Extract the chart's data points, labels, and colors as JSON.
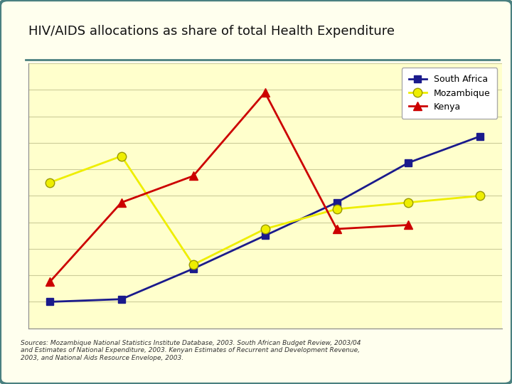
{
  "title": "HIV/AIDS allocations as share of total Health Expenditure",
  "background_color": "#ffffee",
  "border_color": "#4a8080",
  "plot_bg_color": "#ffffcc",
  "grid_color": "#cccc99",
  "south_africa": {
    "label": "South Africa",
    "color": "#1a1a8c",
    "marker": "s",
    "values": [
      2.0,
      2.2,
      4.5,
      7.0,
      9.5,
      12.5,
      14.5
    ]
  },
  "mozambique": {
    "label": "Mozambique",
    "color": "#eeee00",
    "marker": "o",
    "values": [
      11.0,
      13.0,
      4.8,
      7.5,
      9.0,
      9.5,
      10.0
    ]
  },
  "kenya": {
    "label": "Kenya",
    "color": "#cc0000",
    "marker": "^",
    "values": [
      3.5,
      9.5,
      11.5,
      17.8,
      7.5,
      7.8,
      null
    ]
  },
  "x_labels": [
    "",
    "",
    "",
    "",
    "",
    "",
    ""
  ],
  "ylim": [
    0,
    20
  ],
  "ytick_count": 10,
  "source_text": "Sources: Mozambique National Statistics Institute Database, 2003. South African Budget Review, 2003/04\nand Estimates of National Expenditure, 2003. Kenyan Estimates of Recurrent and Development Revenue,\n2003, and National Aids Resource Envelope, 2003.",
  "top_line_color": "#4a8080",
  "fig_width": 7.2,
  "fig_height": 5.4
}
